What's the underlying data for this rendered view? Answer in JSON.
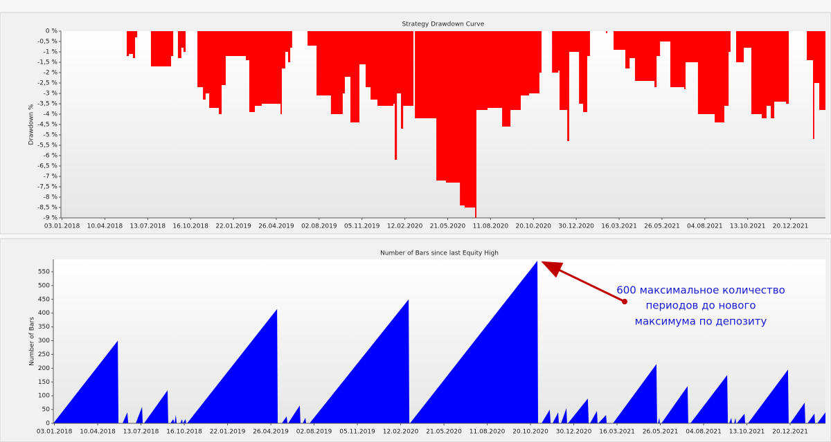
{
  "chart_data": [
    {
      "type": "area",
      "step": true,
      "title": "Strategy Drawdown Curve",
      "ylabel": "Drawdown %",
      "color": "#ff0000",
      "x": [
        0,
        307,
        317,
        336,
        346,
        356,
        420,
        514,
        524,
        546,
        562,
        572,
        582,
        637,
        663,
        675,
        692,
        737,
        750,
        769,
        853,
        863,
        879,
        905,
        937,
        1025,
        1031,
        1047,
        1060,
        1070,
        1079,
        1151,
        1193,
        1260,
        1315,
        1325,
        1351,
        1393,
        1422,
        1445,
        1477,
        1551,
        1558,
        1568,
        1587,
        1597,
        1645,
        1652,
        1752,
        1797,
        1862,
        1884,
        1933,
        1939,
        1991,
        2059,
        2098,
        2146,
        2185,
        2233,
        2243,
        2292,
        2321,
        2327,
        2363,
        2372,
        2418,
        2437,
        2456,
        2469,
        2544,
        2550,
        2579,
        2634,
        2654,
        2679,
        2770,
        2780,
        2796,
        2844,
        2909,
        2915,
        2973,
        3051,
        3096,
        3116,
        3125,
        3151,
        3187,
        3222,
        3271,
        3293,
        3313,
        3329,
        3384,
        3397,
        3481,
        3510,
        3516,
        3539,
        3568
      ],
      "values": [
        0,
        -1.2,
        -1.1,
        -1.3,
        -0.3,
        0,
        -1.7,
        -1.2,
        0,
        -1.3,
        -0.8,
        -1,
        0,
        -2.7,
        -3.3,
        -3,
        -3.7,
        -4,
        -2.6,
        -1.2,
        -1.2,
        -1.4,
        -3.9,
        -3.6,
        -3.5,
        -4,
        -1.8,
        -1,
        -1.5,
        -0.8,
        0,
        -0.7,
        -3.1,
        -4,
        -3,
        -2.2,
        -4.4,
        -1.6,
        -2.7,
        -3.3,
        -3.6,
        -3.5,
        -6.2,
        -3,
        -4.7,
        -3.6,
        0,
        -4.2,
        -7.2,
        -7.3,
        -8.4,
        -8.5,
        -9,
        -3.8,
        -3.7,
        -4.6,
        -3.8,
        -3.1,
        -3,
        -2,
        0,
        -2,
        -1.9,
        -3.8,
        -5.3,
        -1,
        -3.5,
        -3.9,
        -1.2,
        0,
        -0.1,
        0,
        -0.9,
        -1.8,
        -1.3,
        -2.4,
        -2.7,
        -1.2,
        -0.5,
        -2.7,
        -2.8,
        -1.5,
        -4,
        -4.4,
        -3.6,
        -1,
        0,
        -1.5,
        -0.8,
        -4,
        -4.2,
        -3.6,
        -4.2,
        -3.4,
        -3.5,
        0,
        -1.4,
        -5.2,
        -2.5,
        -3.8,
        -3.8
      ],
      "xlim": [
        0,
        3568
      ],
      "ylim": [
        -9,
        0
      ],
      "xticks": [
        {
          "value": 5,
          "label": "03.01.2018"
        },
        {
          "value": 205,
          "label": "10.04.2018"
        },
        {
          "value": 405,
          "label": "13.07.2018"
        },
        {
          "value": 605,
          "label": "16.10.2018"
        },
        {
          "value": 805,
          "label": "22.01.2019"
        },
        {
          "value": 1005,
          "label": "26.04.2019"
        },
        {
          "value": 1205,
          "label": "02.08.2019"
        },
        {
          "value": 1405,
          "label": "05.11.2019"
        },
        {
          "value": 1605,
          "label": "12.02.2020"
        },
        {
          "value": 1805,
          "label": "21.05.2020"
        },
        {
          "value": 2005,
          "label": "11.08.2020"
        },
        {
          "value": 2205,
          "label": "20.10.2020"
        },
        {
          "value": 2405,
          "label": "30.12.2020"
        },
        {
          "value": 2605,
          "label": "16.03.2021"
        },
        {
          "value": 2805,
          "label": "26.05.2021"
        },
        {
          "value": 3005,
          "label": "04.08.2021"
        },
        {
          "value": 3205,
          "label": "13.10.2021"
        },
        {
          "value": 3405,
          "label": "20.12.2021"
        }
      ],
      "yticks": [
        {
          "value": 0,
          "label": "0 %"
        },
        {
          "value": -0.5,
          "label": "-0,5 %"
        },
        {
          "value": -1,
          "label": "-1 %"
        },
        {
          "value": -1.5,
          "label": "-1,5 %"
        },
        {
          "value": -2,
          "label": "-2 %"
        },
        {
          "value": -2.5,
          "label": "-2,5 %"
        },
        {
          "value": -3,
          "label": "-3 %"
        },
        {
          "value": -3.5,
          "label": "-3,5 %"
        },
        {
          "value": -4,
          "label": "-4 %"
        },
        {
          "value": -4.5,
          "label": "-4,5 %"
        },
        {
          "value": -5,
          "label": "-5 %"
        },
        {
          "value": -5.5,
          "label": "-5,5 %"
        },
        {
          "value": -6,
          "label": "-6 %"
        },
        {
          "value": -6.5,
          "label": "-6,5 %"
        },
        {
          "value": -7,
          "label": "-7 %"
        },
        {
          "value": -7.5,
          "label": "-7,5 %"
        },
        {
          "value": -8,
          "label": "-8 %"
        },
        {
          "value": -8.5,
          "label": "-8,5 %"
        },
        {
          "value": -9,
          "label": "-9 %"
        }
      ]
    },
    {
      "type": "area",
      "step": false,
      "title": "Number of Bars since last Equity High",
      "ylabel": "Number of Bars",
      "color": "#0000ff",
      "annotation": [
        "600 максимальное количество",
        "периодов до нового",
        "максимума по депозиту"
      ],
      "x": [
        0,
        298,
        301,
        320,
        342,
        346,
        381,
        410,
        413,
        419,
        528,
        531,
        541,
        554,
        560,
        566,
        570,
        586,
        595,
        598,
        611,
        614,
        618,
        1034,
        1037,
        1056,
        1078,
        1082,
        1085,
        1139,
        1142,
        1152,
        1165,
        1168,
        1184,
        1642,
        1645,
        1648,
        2237,
        2240,
        2256,
        2294,
        2298,
        2307,
        2333,
        2336,
        2346,
        2371,
        2374,
        2378,
        2470,
        2474,
        2480,
        2512,
        2515,
        2518,
        2554,
        2557,
        2586,
        2787,
        2790,
        2794,
        2800,
        2803,
        2810,
        2931,
        2934,
        2944,
        3114,
        3117,
        3123,
        3133,
        3136,
        3146,
        3152,
        3155,
        3158,
        3194,
        3197,
        3210,
        3395,
        3398,
        3405,
        3472,
        3475,
        3485,
        3517,
        3520,
        3530,
        3568
      ],
      "values": [
        0,
        300,
        0,
        0,
        40,
        0,
        0,
        60,
        0,
        0,
        120,
        0,
        0,
        15,
        0,
        30,
        0,
        0,
        15,
        0,
        15,
        0,
        0,
        415,
        0,
        0,
        25,
        0,
        0,
        65,
        0,
        0,
        20,
        0,
        0,
        450,
        0,
        0,
        590,
        0,
        0,
        50,
        0,
        0,
        40,
        0,
        0,
        55,
        0,
        0,
        90,
        0,
        0,
        45,
        0,
        0,
        30,
        0,
        0,
        215,
        0,
        0,
        20,
        0,
        0,
        135,
        0,
        0,
        175,
        0,
        0,
        20,
        0,
        0,
        20,
        0,
        0,
        35,
        0,
        0,
        195,
        0,
        0,
        75,
        0,
        0,
        35,
        0,
        0,
        40
      ],
      "xlim": [
        0,
        3568
      ],
      "ylim": [
        0,
        595
      ],
      "xticks": [
        {
          "value": 5,
          "label": "03.01.2018"
        },
        {
          "value": 205,
          "label": "10.04.2018"
        },
        {
          "value": 405,
          "label": "13.07.2018"
        },
        {
          "value": 605,
          "label": "16.10.2018"
        },
        {
          "value": 805,
          "label": "22.01.2019"
        },
        {
          "value": 1005,
          "label": "26.04.2019"
        },
        {
          "value": 1205,
          "label": "02.08.2019"
        },
        {
          "value": 1405,
          "label": "05.11.2019"
        },
        {
          "value": 1605,
          "label": "12.02.2020"
        },
        {
          "value": 1805,
          "label": "21.05.2020"
        },
        {
          "value": 2005,
          "label": "11.08.2020"
        },
        {
          "value": 2205,
          "label": "20.10.2020"
        },
        {
          "value": 2405,
          "label": "30.12.2020"
        },
        {
          "value": 2605,
          "label": "16.03.2021"
        },
        {
          "value": 2805,
          "label": "26.05.2021"
        },
        {
          "value": 3005,
          "label": "04.08.2021"
        },
        {
          "value": 3205,
          "label": "13.10.2021"
        },
        {
          "value": 3405,
          "label": "20.12.2021"
        }
      ],
      "yticks": [
        0,
        50,
        100,
        150,
        200,
        250,
        300,
        350,
        400,
        450,
        500,
        550
      ]
    }
  ]
}
